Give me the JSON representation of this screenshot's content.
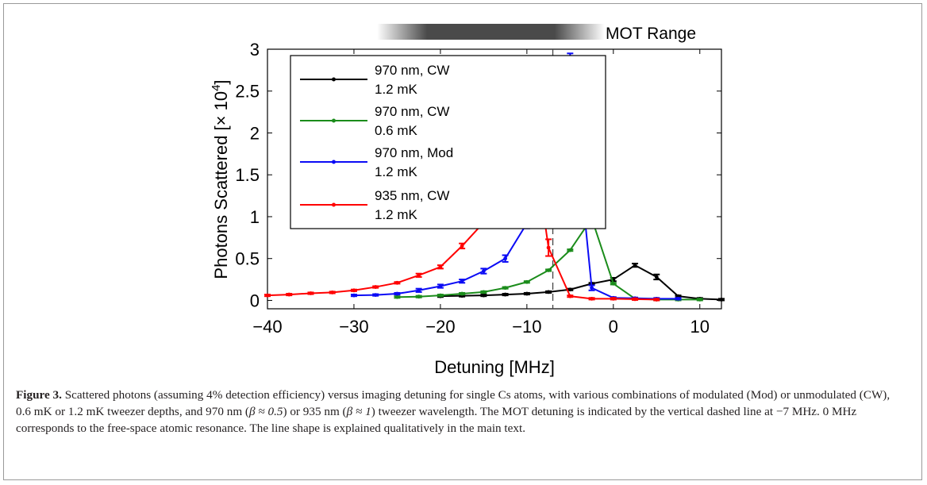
{
  "figure": {
    "caption_label": "Figure 3.",
    "caption_part1": " Scattered photons (assuming 4% detection efficiency) versus imaging detuning for single Cs atoms, with various combinations of modulated (Mod) or unmodulated (CW), 0.6 mK or 1.2 mK tweezer depths, and 970 nm (",
    "caption_beta1": "β ≈ 0.5",
    "caption_part2": ") or 935 nm (",
    "caption_beta2": "β ≈ 1",
    "caption_part3": ") tweezer wavelength. The MOT detuning is indicated by the vertical dashed line at −7 MHz. 0 MHz corresponds to the free-space atomic resonance. The line shape is explained qualitatively in the main text."
  },
  "chart_data": {
    "type": "line",
    "xlabel": "Detuning [MHz]",
    "ylabel_text": "Photons Scattered [",
    "ylabel_times": "× 10",
    "ylabel_exp": "4",
    "ylabel_close": "]",
    "xlim": [
      -40,
      12.5
    ],
    "ylim": [
      -0.1,
      3
    ],
    "xticks": [
      -40,
      -30,
      -20,
      -10,
      0,
      10
    ],
    "xtick_labels": [
      "−40",
      "−30",
      "−20",
      "−10",
      "0",
      "10"
    ],
    "yticks": [
      0,
      0.5,
      1,
      1.5,
      2,
      2.5,
      3
    ],
    "ytick_labels": [
      "0",
      "0.5",
      "1",
      "1.5",
      "2",
      "2.5",
      "3"
    ],
    "grid": false,
    "legend_position": "top-left",
    "mot_dashed_line_x": -7,
    "mot_range": {
      "label": "MOT Range",
      "x_start": -27,
      "x_end": -2,
      "color": "#4a4a4a"
    },
    "series": [
      {
        "name_line1": "970 nm, CW",
        "name_line2": "1.2 mK",
        "color": "#000000",
        "x": [
          -20,
          -17.5,
          -15,
          -12.5,
          -10,
          -7.5,
          -5,
          -2.5,
          0,
          2.5,
          5,
          7.5,
          10,
          12.5
        ],
        "y": [
          0.05,
          0.055,
          0.06,
          0.07,
          0.08,
          0.1,
          0.13,
          0.2,
          0.25,
          0.42,
          0.28,
          0.05,
          0.02,
          0.01
        ],
        "err": [
          0.01,
          0.01,
          0.01,
          0.01,
          0.01,
          0.01,
          0.01,
          0.01,
          0.02,
          0.02,
          0.03,
          0.01,
          0.01,
          0.01
        ]
      },
      {
        "name_line1": "970 nm, CW",
        "name_line2": "0.6 mK",
        "color": "#1b8c1b",
        "x": [
          -25,
          -22.5,
          -20,
          -17.5,
          -15,
          -12.5,
          -10,
          -7.5,
          -5,
          -2.5,
          0,
          2.5,
          5,
          7.5,
          10
        ],
        "y": [
          0.04,
          0.045,
          0.06,
          0.08,
          0.1,
          0.15,
          0.22,
          0.36,
          0.6,
          0.98,
          0.2,
          0.02,
          0.01,
          0.01,
          0.01
        ],
        "err": [
          0.01,
          0.01,
          0.01,
          0.01,
          0.01,
          0.01,
          0.01,
          0.01,
          0.01,
          0.02,
          0.01,
          0.01,
          0.01,
          0.01,
          0.01
        ]
      },
      {
        "name_line1": "970 nm, Mod",
        "name_line2": "1.2 mK",
        "color": "#0b0bf5",
        "x": [
          -30,
          -27.5,
          -25,
          -22.5,
          -20,
          -17.5,
          -15,
          -12.5,
          -10,
          -7.5,
          -5,
          -2.5,
          0,
          2.5,
          5,
          7.5
        ],
        "y": [
          0.06,
          0.065,
          0.08,
          0.12,
          0.17,
          0.23,
          0.35,
          0.5,
          0.92,
          1.72,
          2.75,
          0.15,
          0.03,
          0.025,
          0.02,
          0.02
        ],
        "err": [
          0.01,
          0.01,
          0.01,
          0.02,
          0.02,
          0.02,
          0.03,
          0.04,
          0.06,
          0.08,
          0.2,
          0.03,
          0.01,
          0.01,
          0.01,
          0.01
        ]
      },
      {
        "name_line1": "935 nm, CW",
        "name_line2": "1.2 mK",
        "color": "#ff0000",
        "x": [
          -40,
          -37.5,
          -35,
          -32.5,
          -30,
          -27.5,
          -25,
          -22.5,
          -20,
          -17.5,
          -15,
          -12.5,
          -10,
          -7.5,
          -5,
          -2.5,
          0,
          2.5,
          5
        ],
        "y": [
          0.06,
          0.07,
          0.085,
          0.095,
          0.12,
          0.16,
          0.21,
          0.3,
          0.4,
          0.65,
          0.93,
          1.4,
          2.43,
          0.63,
          0.05,
          0.02,
          0.02,
          0.015,
          0.01
        ],
        "err": [
          0.01,
          0.01,
          0.01,
          0.01,
          0.01,
          0.01,
          0.01,
          0.02,
          0.02,
          0.03,
          0.04,
          0.05,
          0.08,
          0.1,
          0.01,
          0.01,
          0.01,
          0.01,
          0.01
        ]
      }
    ]
  }
}
